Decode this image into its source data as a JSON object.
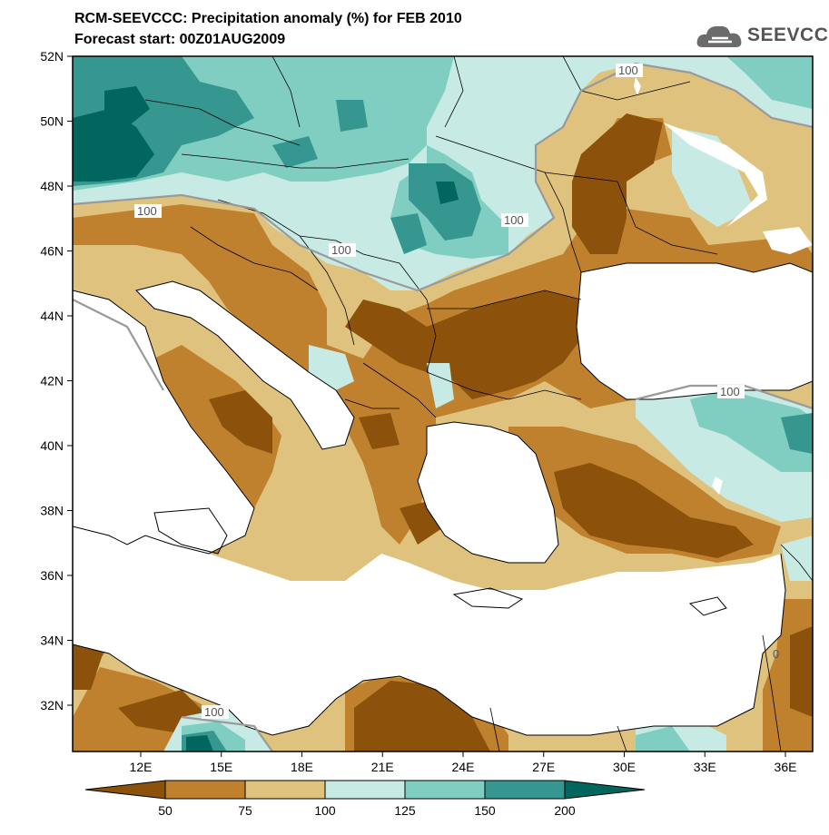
{
  "title": {
    "line1": "RCM-SEEVCCC: Precipitation anomaly (%) for FEB 2010",
    "line2": "Forecast start: 00Z01AUG2009"
  },
  "logo": {
    "text": "SEEVCCC",
    "icon": "cloud-icon"
  },
  "map": {
    "lat_labels": [
      "52N",
      "50N",
      "48N",
      "46N",
      "44N",
      "42N",
      "40N",
      "38N",
      "36N",
      "34N",
      "32N"
    ],
    "lon_labels": [
      "12E",
      "15E",
      "18E",
      "21E",
      "24E",
      "27E",
      "30E",
      "33E",
      "36E"
    ],
    "contour_labels": [
      "100",
      "100",
      "100",
      "100",
      "100",
      "100",
      "0"
    ]
  },
  "colorbar": {
    "ticks": [
      "50",
      "75",
      "100",
      "125",
      "150",
      "200"
    ],
    "colors": [
      "#8c510a",
      "#bf812d",
      "#dfc27d",
      "#c7eae5",
      "#80cdc1",
      "#35978f",
      "#01665e"
    ]
  },
  "colors": {
    "sea": "#ffffff",
    "class_lt50": "#8c510a",
    "class_50_75": "#bf812d",
    "class_75_100": "#dfc27d",
    "class_100_125": "#c7eae5",
    "class_125_150": "#80cdc1",
    "class_150_200": "#35978f",
    "class_gt200": "#01665e"
  }
}
